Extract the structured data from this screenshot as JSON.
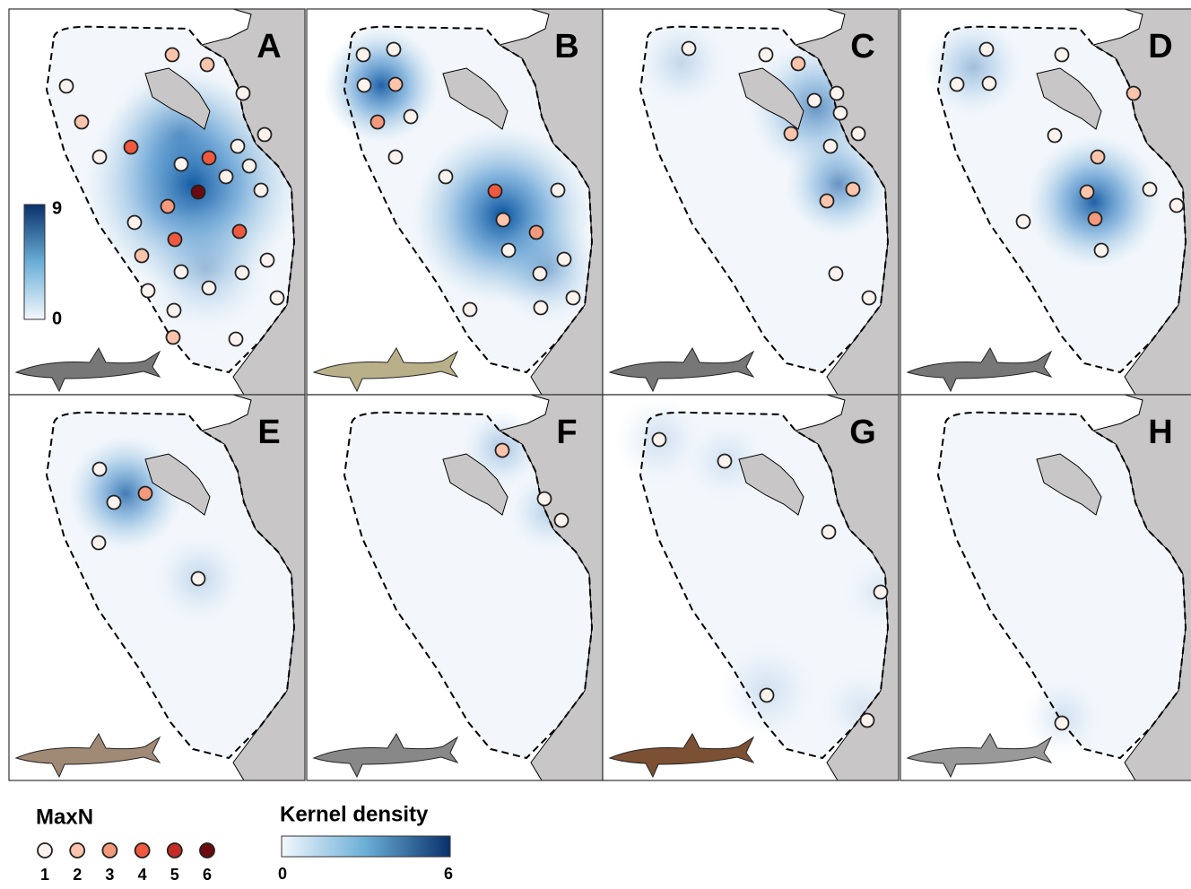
{
  "panels": [
    {
      "label": "A",
      "maxn": [
        2,
        2,
        1,
        1,
        2,
        1,
        4,
        1,
        1,
        4,
        1,
        1,
        1,
        6,
        1,
        3,
        1,
        4,
        4,
        2,
        1,
        1,
        1,
        1,
        1,
        1,
        1,
        2,
        1
      ]
    },
    {
      "label": "B",
      "maxn": [
        1,
        1,
        1,
        2,
        3,
        1,
        1,
        1,
        4,
        1,
        2,
        3,
        1,
        1,
        1,
        1,
        1,
        1
      ]
    },
    {
      "label": "C",
      "maxn": [
        1,
        1,
        2,
        1,
        1,
        1,
        1,
        2,
        1,
        2,
        2,
        1,
        1
      ]
    },
    {
      "label": "D",
      "maxn": [
        1,
        1,
        1,
        1,
        2,
        1,
        2,
        2,
        1,
        1,
        3,
        1,
        1
      ]
    },
    {
      "label": "E",
      "maxn": [
        1,
        3,
        1,
        1,
        1
      ]
    },
    {
      "label": "F",
      "maxn": [
        2,
        1,
        1
      ]
    },
    {
      "label": "G",
      "maxn": [
        1,
        1,
        1,
        1,
        1,
        1
      ]
    },
    {
      "label": "H",
      "maxn": [
        1
      ]
    }
  ],
  "panel_a_scale": {
    "max": 9,
    "min": 0
  },
  "legend": {
    "maxn": {
      "title": "MaxN",
      "levels": [
        1,
        2,
        3,
        4,
        5,
        6
      ],
      "colors": [
        "#fdf3ee",
        "#fbc4ab",
        "#f4997b",
        "#ef5940",
        "#c52a26",
        "#6b0a0f"
      ]
    },
    "kernel_density": {
      "title": "Kernel density",
      "min": 0,
      "max": 6
    }
  }
}
